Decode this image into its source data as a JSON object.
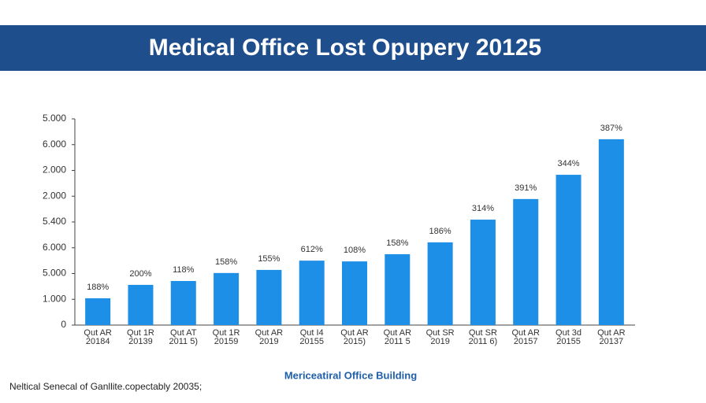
{
  "chart_data": {
    "type": "bar",
    "title": "Medical Office Lost Opupery 20125",
    "x_label": "Mericeatiral Office Building",
    "footnote": "Neltical Senecal of Ganllite.copectably 20035;",
    "categories": [
      [
        "Qut AR",
        "20184"
      ],
      [
        "Qut 1R",
        "20139"
      ],
      [
        "Qut AT",
        "2011 5)"
      ],
      [
        "Qut 1R",
        "20159"
      ],
      [
        "Qut AR",
        "2019"
      ],
      [
        "Qut I4",
        "20155"
      ],
      [
        "Qut AR",
        "2015)"
      ],
      [
        "Qut AR",
        "2011 5"
      ],
      [
        "Qut SR",
        "2019"
      ],
      [
        "Qut SR",
        "2011 6)"
      ],
      [
        "Qut AR",
        "20157"
      ],
      [
        "Qut 3d",
        "20155"
      ],
      [
        "Qut AR",
        "20137"
      ]
    ],
    "values": [
      1.04,
      1.56,
      1.71,
      2.02,
      2.14,
      2.5,
      2.47,
      2.75,
      3.21,
      4.09,
      4.89,
      5.83,
      7.21
    ],
    "annotations": [
      "188%",
      "200%",
      "118%",
      "158%",
      "155%",
      "612%",
      "108%",
      "158%",
      "186%",
      "314%",
      "391%",
      "344%",
      "387%"
    ],
    "color": "#1e8fe6",
    "ylim": [
      0,
      8
    ],
    "yticks": [
      0,
      {
        "value": 1,
        "label": "1.000"
      },
      {
        "value": 2,
        "label": "5.000"
      },
      {
        "value": 3,
        "label": "6.000"
      },
      {
        "value": 4,
        "label": "5.400"
      },
      {
        "value": 5,
        "label": "2.000"
      },
      {
        "value": 6,
        "label": "2.000"
      },
      {
        "value": 7,
        "label": "6.000"
      },
      {
        "value": 8,
        "label": "5.000"
      }
    ]
  }
}
